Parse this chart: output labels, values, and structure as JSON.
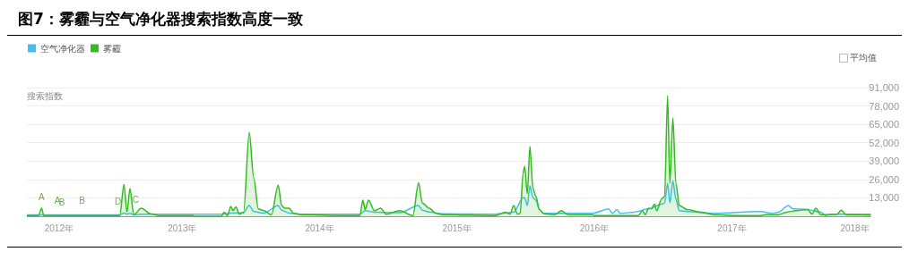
{
  "chart_data": {
    "type": "line",
    "title": "图7：雾霾与空气净化器搜索指数高度一致",
    "ylabel": "搜索指数",
    "legend": "top left",
    "grid": "y",
    "marker": "none",
    "line_style": "solid",
    "xlim": [
      "2011-11-15",
      "2018-01-05"
    ],
    "xticks": [
      {
        "value": "2012",
        "label": "2012年"
      },
      {
        "value": "2013",
        "label": "2013年"
      },
      {
        "value": "2014",
        "label": "2014年"
      },
      {
        "value": "2015",
        "label": "2015年"
      },
      {
        "value": "2016",
        "label": "2016年"
      },
      {
        "value": "2017",
        "label": "2017年"
      },
      {
        "value": "2018",
        "label": "2018年"
      }
    ],
    "ylim": [
      0,
      91000
    ],
    "yticks": [
      {
        "value": 13000,
        "label": "13,000"
      },
      {
        "value": 26000,
        "label": "26,000"
      },
      {
        "value": 39000,
        "label": "39,000"
      },
      {
        "value": 52000,
        "label": "52,000"
      },
      {
        "value": 65000,
        "label": "65,000"
      },
      {
        "value": 78000,
        "label": "78,000"
      },
      {
        "value": 91000,
        "label": "91,000"
      }
    ],
    "annotations": [
      "平均值",
      {
        "text": "A",
        "x": "2011-12-24",
        "y": 7500
      },
      {
        "text": "A",
        "x": "2012-02-04",
        "y": 4500
      },
      {
        "text": "B",
        "x": "2012-02-16",
        "y": 3500
      },
      {
        "text": "B",
        "x": "2012-04-10",
        "y": 4500
      },
      {
        "text": "D",
        "x": "2012-07-14",
        "y": 4000
      },
      {
        "text": "C",
        "x": "2012-08-30",
        "y": 5500
      }
    ],
    "series": [
      {
        "name": "空气净化器",
        "color": "#3fc1f0",
        "x": [
          "2011-11-15",
          "2012-07-19",
          "2012-07-30",
          "2012-08-07",
          "2012-08-15",
          "2012-08-25",
          "2012-09-14",
          "2013-04-15",
          "2013-05-10",
          "2013-06-13",
          "2013-06-28",
          "2013-07-10",
          "2013-08-06",
          "2013-09-13",
          "2013-09-22",
          "2013-10-12",
          "2013-11-12",
          "2014-04-18",
          "2014-05-02",
          "2014-05-27",
          "2014-08-02",
          "2014-09-21",
          "2014-10-01",
          "2014-10-19",
          "2014-11-23",
          "2015-04-13",
          "2015-06-01",
          "2015-06-26",
          "2015-06-30",
          "2015-07-07",
          "2015-07-14",
          "2015-07-22",
          "2015-07-30",
          "2015-08-08",
          "2015-08-20",
          "2015-12-27",
          "2016-02-08",
          "2016-02-19",
          "2016-03-01",
          "2016-03-10",
          "2016-04-15",
          "2016-05-24",
          "2016-06-28",
          "2016-07-06",
          "2016-07-14",
          "2016-07-20",
          "2016-07-28",
          "2016-08-05",
          "2016-08-14",
          "2016-09-03",
          "2016-11-12",
          "2017-03-18",
          "2017-04-18",
          "2017-05-04",
          "2017-05-31",
          "2017-06-12",
          "2017-07-21",
          "2017-08-25",
          "2017-09-07",
          "2017-09-22",
          "2018-01-05"
        ],
        "values": [
          1000,
          1000,
          2200,
          1500,
          2000,
          1100,
          1500,
          1500,
          2200,
          2500,
          7600,
          3300,
          2200,
          7600,
          4300,
          2200,
          1500,
          1500,
          3900,
          2900,
          2500,
          7600,
          4300,
          3000,
          1700,
          1500,
          2900,
          13100,
          13100,
          7600,
          21500,
          13100,
          11300,
          4800,
          2000,
          2000,
          5200,
          2000,
          4800,
          2000,
          2900,
          5200,
          8500,
          9400,
          23300,
          9400,
          25000,
          12200,
          3900,
          3300,
          2000,
          3300,
          2000,
          2900,
          7600,
          5200,
          4800,
          2900,
          500,
          1500,
          1500
        ]
      },
      {
        "name": "雾霾",
        "type": "area",
        "color": "#33bb22",
        "x": [
          "2011-11-15",
          "2011-12-16",
          "2011-12-24",
          "2011-12-30",
          "2012-07-19",
          "2012-07-30",
          "2012-08-07",
          "2012-08-15",
          "2012-08-25",
          "2012-09-14",
          "2012-10-09",
          "2012-11-01",
          "2013-01-30",
          "2013-02-01",
          "2013-04-15",
          "2013-04-22",
          "2013-05-01",
          "2013-05-10",
          "2013-05-16",
          "2013-05-24",
          "2013-06-01",
          "2013-06-13",
          "2013-06-28",
          "2013-07-10",
          "2013-07-22",
          "2013-08-06",
          "2013-08-26",
          "2013-09-13",
          "2013-09-22",
          "2013-09-30",
          "2013-10-12",
          "2013-10-24",
          "2013-11-12",
          "2014-03-02",
          "2014-04-18",
          "2014-04-26",
          "2014-05-02",
          "2014-05-11",
          "2014-05-27",
          "2014-06-12",
          "2014-06-27",
          "2014-08-02",
          "2014-09-06",
          "2014-09-21",
          "2014-10-01",
          "2014-10-19",
          "2014-11-07",
          "2014-11-23",
          "2015-04-13",
          "2015-05-10",
          "2015-05-22",
          "2015-06-01",
          "2015-06-11",
          "2015-06-18",
          "2015-06-26",
          "2015-06-30",
          "2015-07-07",
          "2015-07-14",
          "2015-07-22",
          "2015-07-30",
          "2015-08-08",
          "2015-08-20",
          "2015-09-17",
          "2015-10-06",
          "2015-10-22",
          "2015-12-27",
          "2015-12-31",
          "2016-04-27",
          "2016-05-08",
          "2016-05-16",
          "2016-05-24",
          "2016-06-01",
          "2016-06-09",
          "2016-06-15",
          "2016-06-28",
          "2016-07-06",
          "2016-07-14",
          "2016-07-20",
          "2016-07-28",
          "2016-08-05",
          "2016-08-14",
          "2016-09-03",
          "2016-10-12",
          "2016-11-12",
          "2017-01-14",
          "2017-03-18",
          "2017-04-02",
          "2017-05-04",
          "2017-05-27",
          "2017-06-20",
          "2017-07-21",
          "2017-08-02",
          "2017-08-12",
          "2017-08-25",
          "2017-10-07",
          "2017-10-19",
          "2017-10-31",
          "2018-01-05"
        ],
        "values": [
          500,
          500,
          5700,
          500,
          500,
          22400,
          2900,
          19600,
          1100,
          5700,
          1700,
          500,
          500,
          0,
          0,
          2900,
          500,
          7000,
          3900,
          6700,
          1500,
          2900,
          59400,
          27000,
          5200,
          3900,
          1100,
          22000,
          7600,
          5700,
          5700,
          2000,
          1100,
          500,
          500,
          11300,
          4800,
          11300,
          3900,
          5700,
          1500,
          3900,
          500,
          23700,
          9400,
          5700,
          2000,
          1100,
          500,
          2900,
          1500,
          7600,
          1500,
          2000,
          30700,
          35300,
          15900,
          49500,
          19600,
          14000,
          4800,
          1700,
          1100,
          3900,
          1100,
          1100,
          500,
          500,
          3900,
          1100,
          5700,
          5200,
          8500,
          3900,
          12200,
          14000,
          85200,
          23300,
          69500,
          23300,
          7600,
          4800,
          2900,
          1100,
          500,
          500,
          1100,
          1100,
          2900,
          3900,
          4800,
          1500,
          5700,
          1100,
          1500,
          4300,
          1100,
          800
        ]
      }
    ]
  }
}
